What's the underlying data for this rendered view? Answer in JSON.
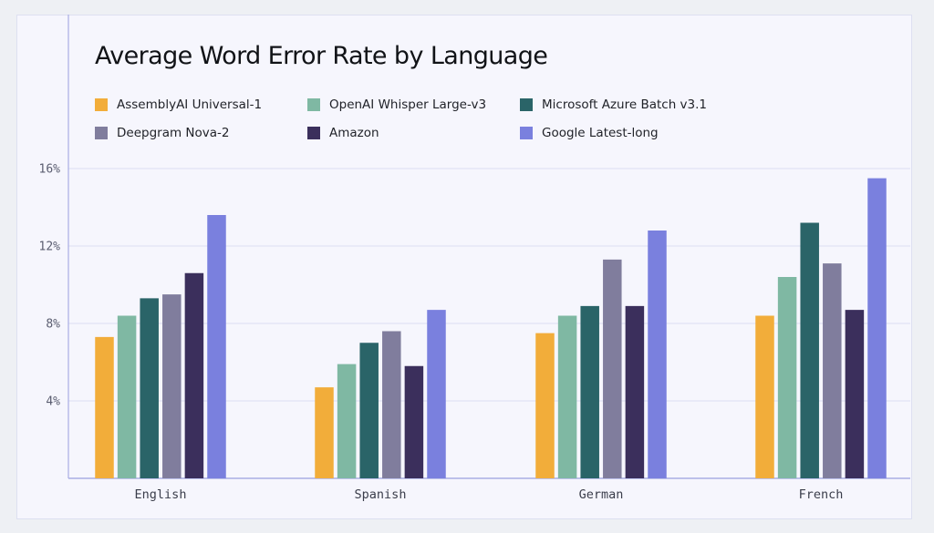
{
  "chart_data": {
    "type": "bar",
    "title": "Average Word Error Rate by Language",
    "xlabel": "",
    "ylabel": "",
    "categories": [
      "English",
      "Spanish",
      "German",
      "French"
    ],
    "series": [
      {
        "name": "AssemblyAI Universal-1",
        "color": "#f2ad3a",
        "values": [
          7.3,
          4.7,
          7.5,
          8.4
        ]
      },
      {
        "name": "OpenAI Whisper Large-v3",
        "color": "#7fb8a3",
        "values": [
          8.4,
          5.9,
          8.4,
          10.4
        ]
      },
      {
        "name": "Microsoft Azure Batch v3.1",
        "color": "#2a6468",
        "values": [
          9.3,
          7.0,
          8.9,
          13.2
        ]
      },
      {
        "name": "Deepgram Nova-2",
        "color": "#807d9d",
        "values": [
          9.5,
          7.6,
          11.3,
          11.1
        ]
      },
      {
        "name": "Amazon",
        "color": "#3b2f5c",
        "values": [
          10.6,
          5.8,
          8.9,
          8.7
        ]
      },
      {
        "name": "Google Latest-long",
        "color": "#7a80de",
        "values": [
          13.6,
          8.7,
          12.8,
          15.5
        ]
      }
    ],
    "yticks": [
      4,
      8,
      12,
      16
    ],
    "ytick_labels": [
      "4%",
      "8%",
      "12%",
      "16%"
    ],
    "ylim": [
      0,
      16
    ],
    "grid": true,
    "legend_position": "top",
    "legend_columns": 3,
    "gridline_color": "#dcdff3",
    "axis_color": "#a9ade3"
  }
}
